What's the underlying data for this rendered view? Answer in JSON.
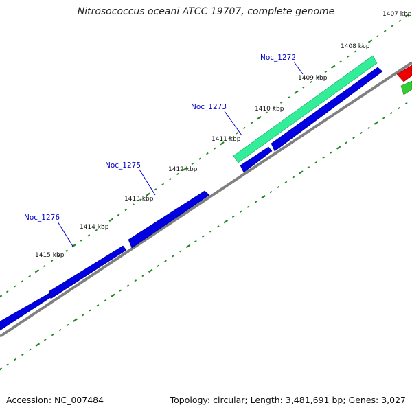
{
  "title": "Nitrosococcus oceani ATCC 19707, complete genome",
  "footer": {
    "accession": "Accession: NC_007484",
    "summary": "Topology: circular; Length: 3,481,691 bp; Genes: 3,027"
  },
  "colors": {
    "backbone": "#808080",
    "forward_gene": "#0000e0",
    "feature_green": "#33ee99",
    "reverse_red": "#ee0000",
    "reverse_green": "#33cc33",
    "tick_mark": "#228822",
    "gene_label": "#0000c8"
  },
  "scale_labels": [
    "1407 kbp",
    "1408 kbp",
    "1409 kbp",
    "1410 kbp",
    "1411 kbp",
    "1412 kbp",
    "1413 kbp",
    "1414 kbp",
    "1415 kbp"
  ],
  "gene_labels": [
    "Noc_1272",
    "Noc_1273",
    "Noc_1275",
    "Noc_1276"
  ]
}
